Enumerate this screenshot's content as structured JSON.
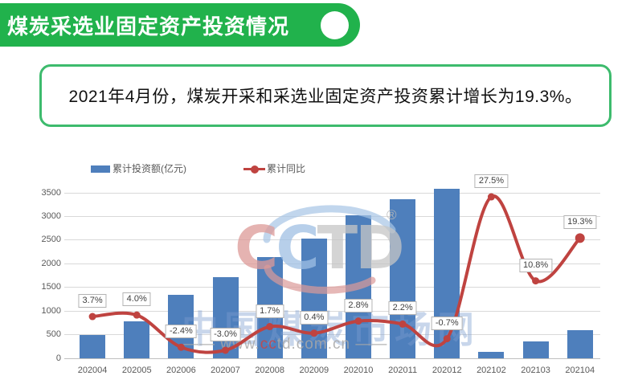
{
  "header": {
    "title": "煤炭采选业固定资产投资情况"
  },
  "summary": {
    "text": "2021年4月份，煤炭开采和采选业固定资产投资累计增长为19.3%。"
  },
  "chart_data": {
    "type": "bar+line",
    "categories": [
      "202004",
      "202005",
      "202006",
      "202007",
      "202008",
      "202009",
      "202010",
      "202011",
      "202012",
      "202102",
      "202103",
      "202104"
    ],
    "series": [
      {
        "name": "累计投资额(亿元)",
        "type": "bar",
        "values": [
          500,
          780,
          1340,
          1720,
          2150,
          2540,
          3030,
          3360,
          3580,
          140,
          350,
          590
        ],
        "color": "#4e7fbc"
      },
      {
        "name": "累计同比",
        "type": "line",
        "values": [
          3.7,
          4.0,
          -2.4,
          -3.0,
          1.7,
          0.4,
          2.8,
          2.2,
          -0.7,
          27.5,
          10.8,
          19.3
        ],
        "labels": [
          "3.7%",
          "4.0%",
          "-2.4%",
          "-3.0%",
          "1.7%",
          "0.4%",
          "2.8%",
          "2.2%",
          "-0.7%",
          "27.5%",
          "10.8%",
          "19.3%"
        ],
        "color": "#bf4340"
      }
    ],
    "y_axis": {
      "min": 0,
      "max": 3500,
      "step": 500,
      "ticks": [
        "0",
        "500",
        "1000",
        "1500",
        "2000",
        "2500",
        "3000",
        "3500"
      ]
    },
    "y2_axis": {
      "min": -4.6,
      "max": 28.3,
      "visible": false
    },
    "grid": true,
    "legend_position": "top"
  },
  "watermark": {
    "logo_letters": [
      {
        "ch": "C",
        "color": "#dd9a98"
      },
      {
        "ch": "C",
        "color": "#9fc0e4"
      },
      {
        "ch": "T",
        "color": "#c6c6c6"
      },
      {
        "ch": "D",
        "color": "#c6c6c6"
      }
    ],
    "reg": "®",
    "site_name": "中国煤炭市场网",
    "url": "www.cctd.com.cn",
    "url_segments": [
      {
        "text": "—— www.",
        "color": "#a8a8a8"
      },
      {
        "text": "cc",
        "color": "#cc4444"
      },
      {
        "text": "td.com.cn",
        "color": "#a8a8a8"
      },
      {
        "text": " ——",
        "color": "#a8a8a8"
      }
    ],
    "arc_top_color": "#a6c4e6",
    "arc_bottom_color": "#dc9a98"
  },
  "colors": {
    "header_green": "#21b24c",
    "box_border_green": "#3dbb6d",
    "bar_blue": "#4e7fbc",
    "line_red": "#bf4340",
    "axis_text": "#595959",
    "gridline": "#d9d9d9"
  }
}
